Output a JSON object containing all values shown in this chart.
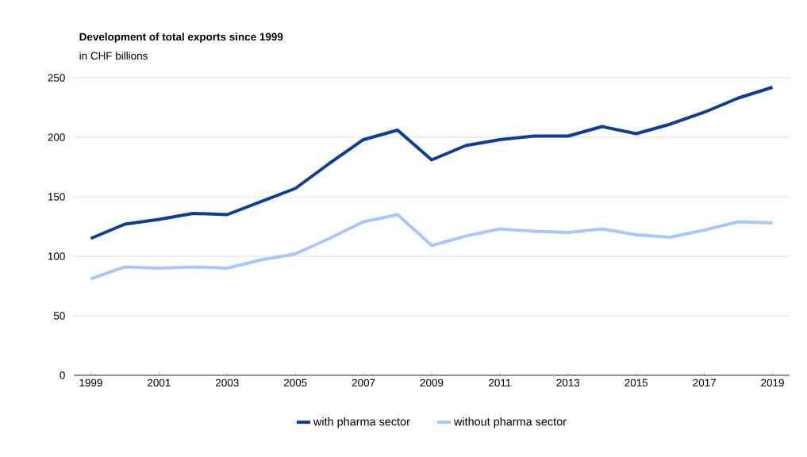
{
  "chart_data": {
    "type": "line",
    "title": "Development of total exports since 1999",
    "subtitle": "in CHF billions",
    "x": [
      1999,
      2000,
      2001,
      2002,
      2003,
      2004,
      2005,
      2006,
      2007,
      2008,
      2009,
      2010,
      2011,
      2012,
      2013,
      2014,
      2015,
      2016,
      2017,
      2018,
      2019
    ],
    "series": [
      {
        "name": "with pharma sector",
        "color": "#0a3d9c",
        "values": [
          115,
          127,
          131,
          136,
          135,
          146,
          157,
          178,
          198,
          206,
          181,
          193,
          198,
          201,
          201,
          209,
          203,
          211,
          221,
          233,
          242
        ]
      },
      {
        "name": "without pharma sector",
        "color": "#a6c8ff",
        "values": [
          81,
          91,
          90,
          91,
          90,
          97,
          102,
          115,
          129,
          135,
          109,
          117,
          123,
          121,
          120,
          123,
          118,
          116,
          122,
          129,
          128
        ]
      }
    ],
    "xlim": [
      1998.5,
      2019.5
    ],
    "xticks": [
      1999,
      2001,
      2003,
      2005,
      2007,
      2009,
      2011,
      2013,
      2015,
      2017,
      2019
    ],
    "ylim": [
      0,
      250
    ],
    "yticks": [
      0,
      50,
      100,
      150,
      200,
      250
    ],
    "grid": "y",
    "legend": "bottom",
    "marker": "none",
    "line_style": "solid"
  }
}
